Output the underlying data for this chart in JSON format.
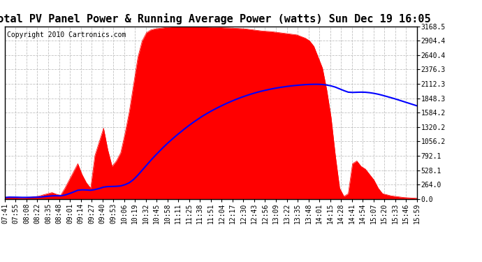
{
  "title": "Total PV Panel Power & Running Average Power (watts) Sun Dec 19 16:05",
  "copyright": "Copyright 2010 Cartronics.com",
  "y_tick_labels": [
    "0.0",
    "264.0",
    "528.1",
    "792.1",
    "1056.2",
    "1320.2",
    "1584.2",
    "1848.3",
    "2112.3",
    "2376.3",
    "2640.4",
    "2904.4",
    "3168.5"
  ],
  "y_tick_values": [
    0.0,
    264.0,
    528.1,
    792.1,
    1056.2,
    1320.2,
    1584.2,
    1848.3,
    2112.3,
    2376.3,
    2640.4,
    2904.4,
    3168.5
  ],
  "x_tick_labels": [
    "07:41",
    "07:55",
    "08:08",
    "08:22",
    "08:35",
    "08:48",
    "09:01",
    "09:14",
    "09:27",
    "09:40",
    "09:53",
    "10:06",
    "10:19",
    "10:32",
    "10:45",
    "10:58",
    "11:11",
    "11:25",
    "11:38",
    "11:51",
    "12:04",
    "12:17",
    "12:30",
    "12:43",
    "12:56",
    "13:09",
    "13:22",
    "13:35",
    "13:48",
    "14:01",
    "14:15",
    "14:28",
    "14:41",
    "14:54",
    "15:07",
    "15:20",
    "15:33",
    "15:46",
    "15:59"
  ],
  "fill_color": "#FF0000",
  "line_color": "#0000FF",
  "background_color": "#FFFFFF",
  "plot_bg_color": "#FFFFFF",
  "grid_color": "#BBBBBB",
  "title_fontsize": 11,
  "copyright_fontsize": 7,
  "tick_fontsize": 7,
  "y_max": 3168.5,
  "y_min": 0.0,
  "pv_data": [
    30,
    40,
    35,
    30,
    25,
    30,
    35,
    45,
    55,
    80,
    100,
    120,
    90,
    70,
    200,
    350,
    500,
    650,
    450,
    300,
    200,
    800,
    1050,
    1300,
    900,
    600,
    700,
    850,
    1200,
    1600,
    2100,
    2600,
    2900,
    3050,
    3100,
    3120,
    3130,
    3140,
    3150,
    3155,
    3160,
    3158,
    3162,
    3165,
    3168,
    3165,
    3160,
    3155,
    3150,
    3148,
    3145,
    3140,
    3138,
    3135,
    3130,
    3125,
    3120,
    3110,
    3100,
    3090,
    3080,
    3075,
    3070,
    3060,
    3050,
    3040,
    3030,
    3020,
    3010,
    2980,
    2950,
    2900,
    2800,
    2600,
    2400,
    2000,
    1500,
    800,
    200,
    50,
    100,
    650,
    700,
    600,
    550,
    450,
    350,
    200,
    100,
    80,
    60,
    50,
    40,
    30,
    25,
    20,
    15
  ],
  "avg_data": [
    30,
    35,
    35,
    34,
    32,
    32,
    33,
    35,
    37,
    45,
    52,
    60,
    62,
    60,
    75,
    100,
    130,
    163,
    170,
    168,
    162,
    175,
    195,
    220,
    230,
    232,
    235,
    242,
    265,
    300,
    360,
    440,
    530,
    620,
    710,
    795,
    876,
    955,
    1030,
    1100,
    1168,
    1232,
    1295,
    1355,
    1412,
    1466,
    1518,
    1565,
    1610,
    1652,
    1692,
    1730,
    1766,
    1800,
    1832,
    1862,
    1890,
    1916,
    1940,
    1962,
    1982,
    2000,
    2017,
    2032,
    2045,
    2057,
    2068,
    2077,
    2085,
    2092,
    2098,
    2102,
    2104,
    2104,
    2100,
    2090,
    2075,
    2052,
    2020,
    1988,
    1960,
    1955,
    1958,
    1960,
    1958,
    1950,
    1938,
    1922,
    1902,
    1880,
    1858,
    1835,
    1810,
    1785,
    1760,
    1735,
    1710
  ]
}
